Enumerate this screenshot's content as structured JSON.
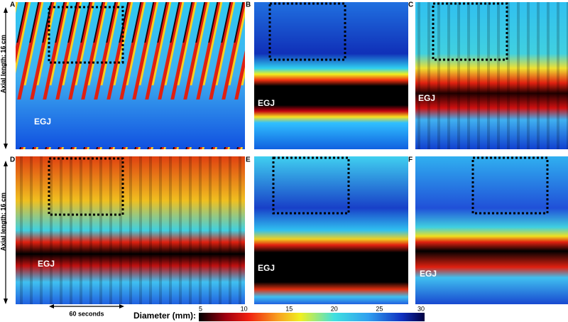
{
  "panels": [
    {
      "letter": "A",
      "marker": "EGJ"
    },
    {
      "letter": "B",
      "marker": "EGJ"
    },
    {
      "letter": "C",
      "marker": "EGJ"
    },
    {
      "letter": "D",
      "marker": "EGJ"
    },
    {
      "letter": "E",
      "marker": "EGJ"
    },
    {
      "letter": "F",
      "marker": "EGJ"
    }
  ],
  "axis_labels": [
    "Axial length: 16 cm",
    "Axial length: 16 cm"
  ],
  "time_scale": "60 seconds",
  "colorbar": {
    "title": "Diameter (mm):",
    "ticks": [
      5,
      10,
      15,
      20,
      25,
      30
    ]
  }
}
